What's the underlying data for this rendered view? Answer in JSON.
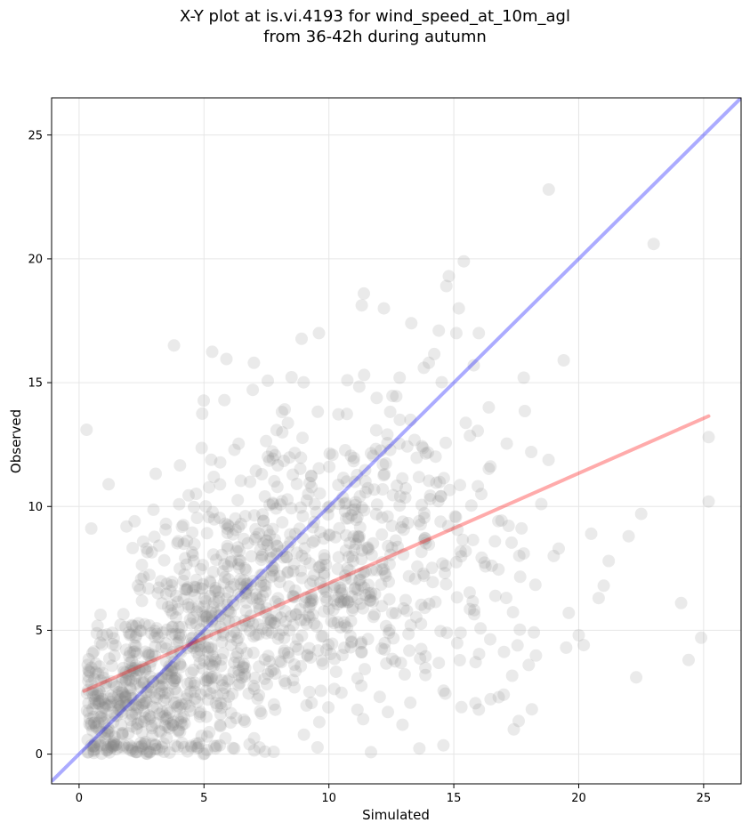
{
  "title_line1": "X-Y plot at is.vi.4193 for wind_speed_at_10m_agl",
  "title_line2": "from 36-42h during autumn",
  "chart_data": {
    "type": "scatter",
    "xlabel": "Simulated",
    "ylabel": "Observed",
    "xlim": [
      -1.1,
      26.5
    ],
    "ylim": [
      -1.2,
      26.5
    ],
    "xticks": [
      0,
      5,
      10,
      15,
      20,
      25
    ],
    "yticks": [
      0,
      5,
      10,
      15,
      20,
      25
    ],
    "grid": true,
    "colors": {
      "points": "#808080",
      "identity_line": "#0000ff",
      "fit_line": "#ff0000"
    },
    "identity_line": {
      "x": [
        -1.1,
        26.5
      ],
      "y": [
        -1.1,
        26.5
      ]
    },
    "fit_line": {
      "x": [
        0.2,
        25.2
      ],
      "y": [
        2.55,
        13.65
      ]
    },
    "outliers": [
      [
        0.3,
        13.1
      ],
      [
        3.8,
        16.5
      ],
      [
        18.8,
        22.8
      ],
      [
        23.0,
        20.6
      ],
      [
        15.4,
        19.9
      ],
      [
        14.8,
        19.3
      ],
      [
        14.7,
        18.9
      ],
      [
        11.4,
        18.6
      ],
      [
        12.2,
        18.0
      ],
      [
        15.2,
        18.0
      ],
      [
        13.3,
        17.4
      ],
      [
        9.6,
        17.0
      ],
      [
        14.4,
        17.1
      ],
      [
        15.1,
        17.0
      ],
      [
        16.0,
        17.0
      ],
      [
        7.0,
        15.8
      ],
      [
        19.4,
        15.9
      ],
      [
        17.8,
        15.2
      ],
      [
        14.0,
        15.8
      ],
      [
        15.8,
        15.7
      ],
      [
        13.8,
        15.6
      ],
      [
        20.5,
        8.9
      ],
      [
        22.0,
        8.8
      ],
      [
        22.5,
        9.7
      ],
      [
        21.2,
        7.8
      ],
      [
        20.8,
        6.3
      ],
      [
        21.0,
        6.8
      ],
      [
        20.2,
        4.4
      ],
      [
        19.5,
        4.3
      ],
      [
        22.3,
        3.1
      ],
      [
        24.1,
        6.1
      ],
      [
        24.4,
        3.8
      ],
      [
        24.9,
        4.7
      ],
      [
        25.2,
        10.2
      ],
      [
        25.2,
        12.8
      ],
      [
        17.4,
        1.0
      ],
      [
        16.8,
        2.3
      ],
      [
        17.0,
        2.4
      ],
      [
        18.0,
        3.6
      ],
      [
        16.0,
        1.8
      ],
      [
        19.0,
        8.0
      ],
      [
        18.5,
        10.1
      ],
      [
        17.8,
        8.1
      ],
      [
        18.1,
        12.2
      ],
      [
        19.2,
        8.3
      ],
      [
        16.4,
        14.0
      ],
      [
        16.1,
        10.5
      ],
      [
        20.0,
        4.8
      ],
      [
        19.6,
        5.7
      ]
    ],
    "clusters": [
      {
        "cx": 2.0,
        "cy": 2.0,
        "sx": 1.5,
        "sy": 1.5,
        "n": 360
      },
      {
        "cx": 5.5,
        "cy": 5.0,
        "sx": 2.0,
        "sy": 2.5,
        "n": 420
      },
      {
        "cx": 9.0,
        "cy": 7.5,
        "sx": 2.5,
        "sy": 3.2,
        "n": 360
      },
      {
        "cx": 12.5,
        "cy": 8.5,
        "sx": 2.2,
        "sy": 3.5,
        "n": 180
      },
      {
        "cx": 15.5,
        "cy": 7.0,
        "sx": 1.6,
        "sy": 3.2,
        "n": 60
      }
    ]
  }
}
